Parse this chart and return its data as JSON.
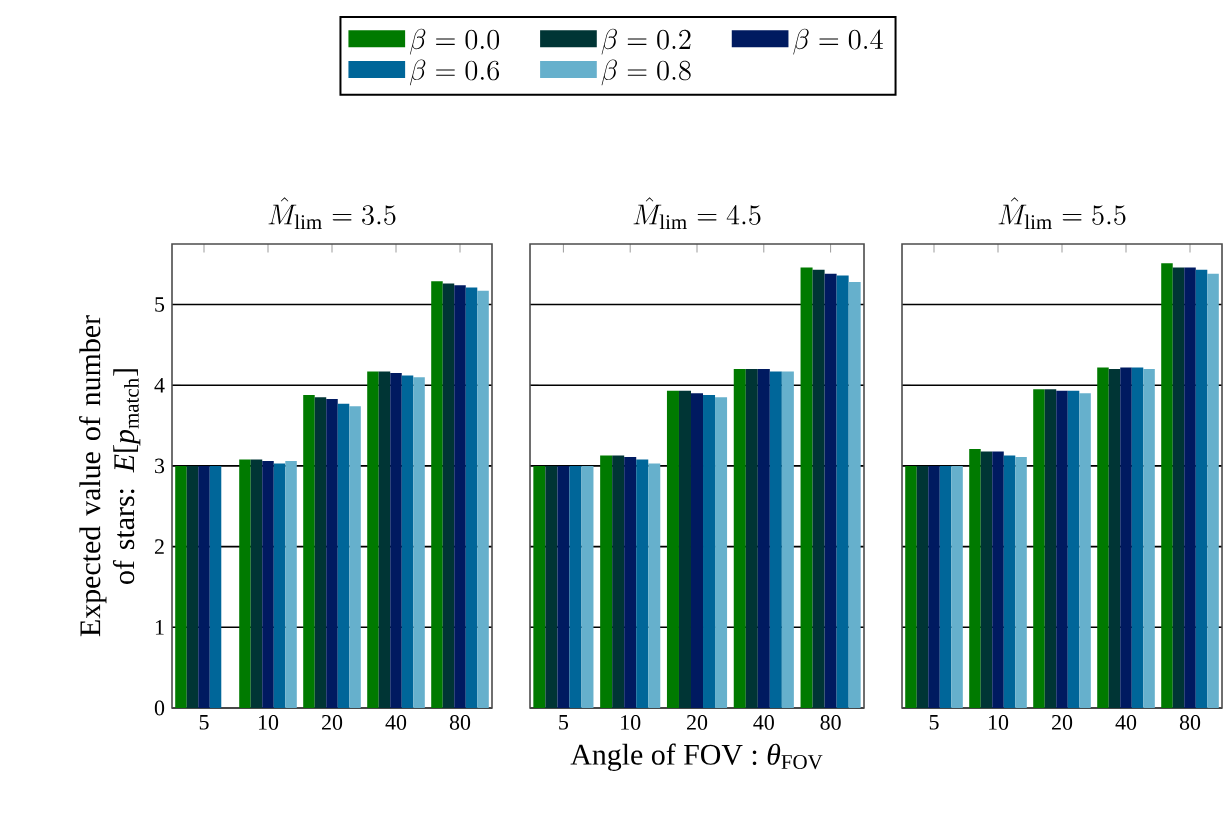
{
  "chart_data": [
    {
      "type": "bar",
      "title": "\\hat{M}_{\\mathrm{lim}}=3.5",
      "ylabel": "Expected value of number of stars: *E*[*p*$_{match}$]",
      "categories": [
        "5",
        "10",
        "20",
        "40",
        "80"
      ],
      "ylim": [
        0,
        5.75
      ],
      "yticks": [
        0,
        1,
        2,
        3,
        4,
        5
      ],
      "grid": "y",
      "legend": "top",
      "series": [
        {
          "name": "\\beta=0.0",
          "color": "#007a00",
          "values": [
            3.0,
            3.08,
            3.88,
            4.17,
            5.29
          ]
        },
        {
          "name": "\\beta=0.2",
          "color": "#003535",
          "values": [
            3.0,
            3.08,
            3.85,
            4.17,
            5.26
          ]
        },
        {
          "name": "\\beta=0.4",
          "color": "#001a60",
          "values": [
            3.0,
            3.06,
            3.83,
            4.15,
            5.24
          ]
        },
        {
          "name": "\\beta=0.6",
          "color": "#006699",
          "values": [
            3.0,
            3.03,
            3.77,
            4.12,
            5.21
          ]
        },
        {
          "name": "\\beta=0.8",
          "color": "#66b0cc",
          "values": [
            null,
            3.06,
            3.74,
            4.1,
            5.17
          ]
        }
      ]
    },
    {
      "type": "bar",
      "title": "\\hat{M}_{\\mathrm{lim}}=4.5",
      "xlabel": "Angle of FOV : *θ*$_{FOV}$",
      "categories": [
        "5",
        "10",
        "20",
        "40",
        "80"
      ],
      "ylim": [
        0,
        5.75
      ],
      "yticks": [
        0,
        1,
        2,
        3,
        4,
        5
      ],
      "grid": "y",
      "tick_labels": "x",
      "series": [
        {
          "color": "#007a00",
          "values": [
            3.0,
            3.13,
            3.93,
            4.2,
            5.46
          ]
        },
        {
          "color": "#003535",
          "values": [
            3.0,
            3.13,
            3.93,
            4.2,
            5.43
          ]
        },
        {
          "color": "#001a60",
          "values": [
            3.0,
            3.11,
            3.9,
            4.2,
            5.38
          ]
        },
        {
          "color": "#006699",
          "values": [
            3.0,
            3.08,
            3.88,
            4.17,
            5.36
          ]
        },
        {
          "color": "#66b0cc",
          "values": [
            3.0,
            3.03,
            3.85,
            4.17,
            5.28
          ]
        }
      ]
    },
    {
      "type": "bar",
      "title": "\\hat{M}_{\\mathrm{lim}}=5.5",
      "categories": [
        "5",
        "10",
        "20",
        "40",
        "80"
      ],
      "ylim": [
        0,
        5.75
      ],
      "yticks": [
        0,
        1,
        2,
        3,
        4,
        5
      ],
      "grid": "y",
      "tick_labels": "x",
      "series": [
        {
          "color": "#007a00",
          "values": [
            3.0,
            3.21,
            3.95,
            4.22,
            5.51
          ]
        },
        {
          "color": "#003535",
          "values": [
            3.0,
            3.18,
            3.95,
            4.2,
            5.46
          ]
        },
        {
          "color": "#001a60",
          "values": [
            3.0,
            3.18,
            3.93,
            4.22,
            5.46
          ]
        },
        {
          "color": "#006699",
          "values": [
            3.0,
            3.13,
            3.93,
            4.22,
            5.43
          ]
        },
        {
          "color": "#66b0cc",
          "values": [
            3.0,
            3.11,
            3.9,
            4.2,
            5.38
          ]
        }
      ]
    }
  ]
}
